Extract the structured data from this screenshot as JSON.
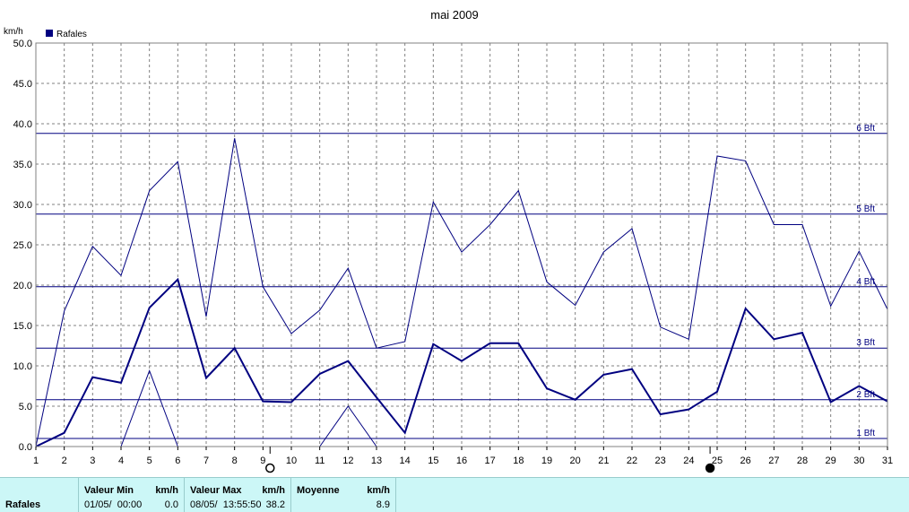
{
  "chart_data": {
    "type": "line",
    "title": "mai 2009",
    "ylabel": "km/h",
    "ylim": [
      0,
      50
    ],
    "xlim": [
      1,
      31
    ],
    "grid": true,
    "legend": "top-left",
    "y_ticks": [
      "0.0",
      "5.0",
      "10.0",
      "15.0",
      "20.0",
      "25.0",
      "30.0",
      "35.0",
      "40.0",
      "45.0",
      "50.0"
    ],
    "x": [
      1,
      2,
      3,
      4,
      5,
      6,
      7,
      8,
      9,
      10,
      11,
      12,
      13,
      14,
      15,
      16,
      17,
      18,
      19,
      20,
      21,
      22,
      23,
      24,
      25,
      26,
      27,
      28,
      29,
      30,
      31
    ],
    "series": [
      {
        "name": "Rafales",
        "role": "max",
        "values": [
          0.0,
          16.8,
          24.8,
          21.2,
          31.7,
          35.3,
          16.1,
          38.2,
          19.8,
          14.0,
          16.9,
          22.1,
          12.2,
          13.0,
          30.3,
          24.1,
          27.5,
          31.7,
          20.4,
          17.5,
          24.1,
          27.0,
          14.8,
          13.3,
          36.0,
          35.4,
          27.5,
          27.5,
          17.4,
          24.2,
          17.0
        ]
      },
      {
        "name": "",
        "role": "min",
        "values": [
          0.0,
          null,
          null,
          0.0,
          9.4,
          0.0,
          null,
          null,
          null,
          null,
          0.0,
          5.0,
          0.0,
          null,
          null,
          null,
          null,
          null,
          null,
          null,
          null,
          null,
          null,
          null,
          null,
          null,
          null,
          null,
          null,
          null,
          null
        ]
      },
      {
        "name": "",
        "role": "mean",
        "values": [
          0.0,
          1.7,
          8.6,
          7.9,
          17.2,
          20.7,
          8.5,
          12.2,
          5.6,
          5.5,
          9.0,
          10.6,
          6.1,
          1.7,
          12.7,
          10.6,
          12.8,
          12.8,
          7.2,
          5.8,
          8.9,
          9.6,
          4.0,
          4.6,
          6.8,
          17.1,
          13.3,
          14.1,
          5.5,
          7.5,
          5.6
        ]
      }
    ],
    "beaufort_lines": [
      {
        "label": "1 Bft",
        "value": 1.0
      },
      {
        "label": "2 Bft",
        "value": 5.8
      },
      {
        "label": "3 Bft",
        "value": 12.2
      },
      {
        "label": "4 Bft",
        "value": 19.8
      },
      {
        "label": "5 Bft",
        "value": 28.8
      },
      {
        "label": "6 Bft",
        "value": 38.8
      }
    ],
    "moon_markers": [
      {
        "day": 9.25,
        "phase": "full"
      },
      {
        "day": 24.75,
        "phase": "new"
      }
    ],
    "colors": {
      "line": "#000080",
      "grid": "#808080",
      "frame": "#808080",
      "footer": "#ccf7f7"
    }
  },
  "footer": {
    "label": "Rafales",
    "min_header": "Valeur Min",
    "min_unit": "km/h",
    "min_date": "01/05/  00:00",
    "min_value": "0.0",
    "max_header": "Valeur Max",
    "max_unit": "km/h",
    "max_date": "08/05/  13:55:50",
    "max_value": "38.2",
    "mean_header": "Moyenne",
    "mean_unit": "km/h",
    "mean_value": "8.9"
  }
}
